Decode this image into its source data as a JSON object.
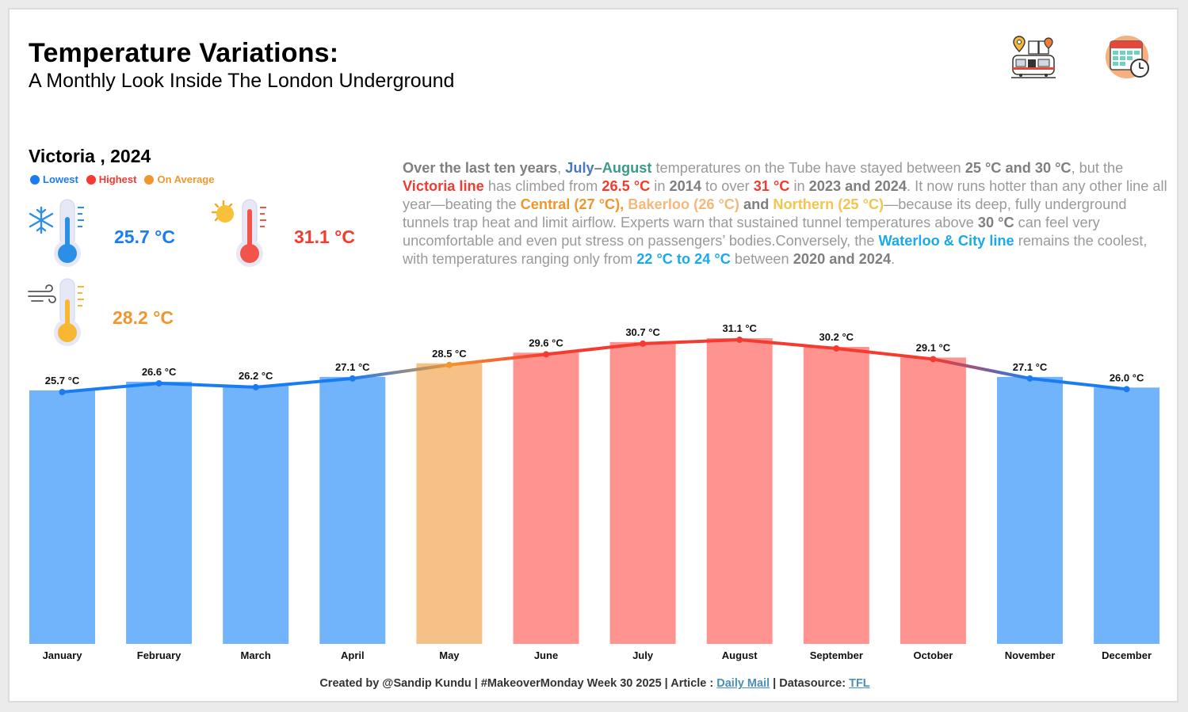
{
  "header": {
    "title": "Temperature Variations:",
    "subtitle": "A Monthly Look Inside The London Underground"
  },
  "icons": {
    "top_left": "train-station-map-icon",
    "top_right": "calendar-clock-icon"
  },
  "station": {
    "title": "Victoria , 2024"
  },
  "legend": [
    {
      "label": "Lowest",
      "color": "#1a7cf3"
    },
    {
      "label": "Highest",
      "color": "#f53a2f"
    },
    {
      "label": "On Average",
      "color": "#f0962e"
    }
  ],
  "kpis": {
    "lowest": {
      "value": "25.7 °C",
      "icon": "snowflake-thermometer-icon",
      "color": "#1a7cf3"
    },
    "highest": {
      "value": "31.1 °C",
      "icon": "sun-thermometer-icon",
      "color": "#f53a2f"
    },
    "average": {
      "value": "28.2 °C",
      "icon": "wind-thermometer-icon",
      "color": "#f0962e"
    }
  },
  "narrative": {
    "p1": "Over the last ten years",
    "p2": ", ",
    "p3": "July",
    "p4": "–",
    "p5": "August",
    "p6": " temperatures on the Tube have stayed between ",
    "p7": "25 °C and 30 °C",
    "p8": ", but the ",
    "p9": "Victoria line",
    "p10": " has climbed from ",
    "p11": "26.5 °C",
    "p12": " in ",
    "p13": "2014",
    "p14": " to over ",
    "p15": "31 °C",
    "p16": " in ",
    "p17": "2023 and 2024",
    "p18": ". It now runs hotter than any other line all year—beating the ",
    "p19": "Central (27 °C),",
    "p20": " ",
    "p21": "Bakerloo (26 °C)",
    "p22": " and ",
    "p23": "Northern (25 °C)",
    "p24": "—because its deep, fully underground tunnels trap heat and limit airflow. Experts warn that sustained tunnel temperatures above ",
    "p25": "30 °C",
    "p26": " can feel very uncomfortable and even put stress on passengers’ bodies.Conversely, the ",
    "p27": "Waterloo & City line",
    "p28": " remains the coolest, with temperatures ranging only from ",
    "p29": "22 °C to 24 °C",
    "p30": " between ",
    "p31": "2020 and 2024",
    "p32": "."
  },
  "chart_data": {
    "type": "bar",
    "title": "",
    "xlabel": "",
    "ylabel": "",
    "categories": [
      "January",
      "February",
      "March",
      "April",
      "May",
      "June",
      "July",
      "August",
      "September",
      "October",
      "November",
      "December"
    ],
    "values": [
      25.7,
      26.6,
      26.2,
      27.1,
      28.5,
      29.6,
      30.7,
      31.1,
      30.2,
      29.1,
      27.1,
      26.0
    ],
    "labels": [
      "25.7 °C",
      "26.6 °C",
      "26.2 °C",
      "27.1 °C",
      "28.5 °C",
      "29.6 °C",
      "30.7 °C",
      "31.1 °C",
      "30.2 °C",
      "29.1 °C",
      "27.1 °C",
      "26.0 °C"
    ],
    "bar_colors": [
      "#72b4fb",
      "#72b4fb",
      "#72b4fb",
      "#72b4fb",
      "#f6c187",
      "#fe9390",
      "#fe9390",
      "#fe9390",
      "#fe9390",
      "#fe9390",
      "#72b4fb",
      "#72b4fb"
    ],
    "line_colors": [
      "#1a7cf3",
      "#1a7cf3",
      "#1a7cf3",
      "#1a7cf3",
      "#f0962e",
      "#f53a2f",
      "#f53a2f",
      "#f53a2f",
      "#f53a2f",
      "#f53a2f",
      "#1a7cf3",
      "#1a7cf3"
    ],
    "overlay": "line with markers over bars",
    "grid": false,
    "legend": "top-left"
  },
  "footer": {
    "prefix": "Created by @Sandip Kundu | #MakeoverMonday Week 30 2025 | Article : ",
    "article_link": "Daily Mail",
    "middle": " | Datasource: ",
    "source_link": "TFL"
  }
}
